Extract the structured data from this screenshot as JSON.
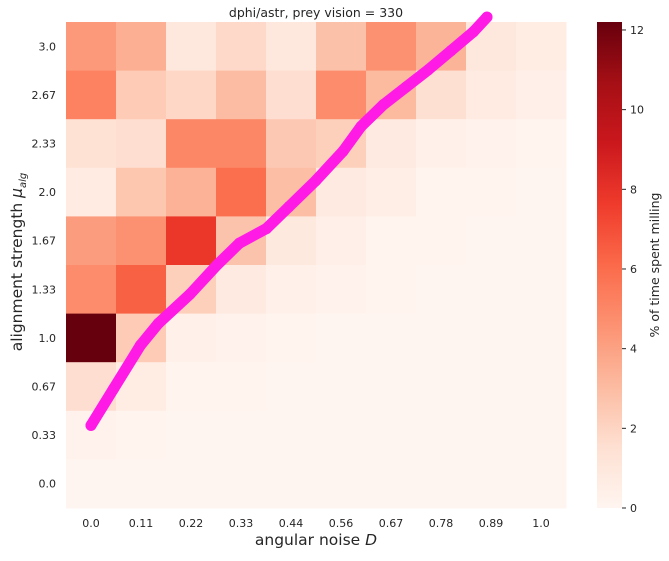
{
  "chart_data": {
    "type": "heatmap",
    "title": "dphi/astr, prey vision = 330",
    "xlabel": "angular noise",
    "xlabel_symbol": "D",
    "ylabel": "alignment strength",
    "ylabel_symbol": "μ",
    "ylabel_subscript": "alg",
    "x_categories": [
      "0.0",
      "0.11",
      "0.22",
      "0.33",
      "0.44",
      "0.56",
      "0.67",
      "0.78",
      "0.89",
      "1.0"
    ],
    "y_categories": [
      "3.0",
      "2.67",
      "2.33",
      "2.0",
      "1.67",
      "1.33",
      "1.0",
      "0.67",
      "0.33",
      "0.0"
    ],
    "values": [
      [
        4.3,
        3.5,
        1.0,
        1.8,
        1.0,
        2.8,
        4.6,
        3.3,
        1.0,
        0.6
      ],
      [
        5.2,
        2.4,
        1.9,
        3.0,
        1.6,
        4.8,
        3.1,
        1.5,
        0.7,
        0.4
      ],
      [
        1.4,
        1.6,
        5.0,
        5.0,
        2.5,
        2.2,
        0.8,
        0.3,
        0.2,
        0.1
      ],
      [
        0.7,
        2.6,
        3.4,
        5.9,
        2.9,
        0.8,
        0.5,
        0.1,
        0.1,
        0.0
      ],
      [
        4.2,
        4.6,
        7.8,
        2.7,
        0.9,
        0.4,
        0.1,
        0.1,
        0.0,
        0.0
      ],
      [
        4.8,
        6.4,
        2.2,
        0.8,
        0.3,
        0.2,
        0.1,
        0.0,
        0.0,
        0.0
      ],
      [
        12.2,
        2.4,
        0.3,
        0.2,
        0.1,
        0.0,
        0.0,
        0.0,
        0.0,
        0.0
      ],
      [
        1.6,
        0.6,
        0.1,
        0.1,
        0.0,
        0.0,
        0.0,
        0.0,
        0.0,
        0.0
      ],
      [
        0.2,
        0.1,
        0.0,
        0.0,
        0.0,
        0.0,
        0.0,
        0.0,
        0.0,
        0.0
      ],
      [
        0.0,
        0.0,
        0.0,
        0.0,
        0.0,
        0.0,
        0.0,
        0.0,
        0.0,
        0.0
      ]
    ],
    "colorbar": {
      "label": "% of time spent milling",
      "min": 0,
      "max": 12.2,
      "ticks": [
        0,
        2,
        4,
        6,
        8,
        10,
        12
      ],
      "colormap": "Reds",
      "colors": [
        "#fff5f0",
        "#fee0d2",
        "#fcbba1",
        "#fc9272",
        "#fb6a4a",
        "#ef3b2c",
        "#cb181d",
        "#a50f15",
        "#67000d"
      ]
    },
    "overlay_curve": {
      "color": "#ff1ae6",
      "points": [
        {
          "x": 0.0,
          "y": 0.4
        },
        {
          "x": 0.05,
          "y": 0.65
        },
        {
          "x": 0.11,
          "y": 0.95
        },
        {
          "x": 0.15,
          "y": 1.1
        },
        {
          "x": 0.22,
          "y": 1.3
        },
        {
          "x": 0.28,
          "y": 1.5
        },
        {
          "x": 0.33,
          "y": 1.65
        },
        {
          "x": 0.39,
          "y": 1.75
        },
        {
          "x": 0.44,
          "y": 1.9
        },
        {
          "x": 0.5,
          "y": 2.08
        },
        {
          "x": 0.56,
          "y": 2.28
        },
        {
          "x": 0.6,
          "y": 2.45
        },
        {
          "x": 0.65,
          "y": 2.6
        },
        {
          "x": 0.7,
          "y": 2.72
        },
        {
          "x": 0.75,
          "y": 2.84
        },
        {
          "x": 0.8,
          "y": 2.97
        },
        {
          "x": 0.85,
          "y": 3.1
        },
        {
          "x": 0.88,
          "y": 3.2
        }
      ]
    },
    "grid": false,
    "legend": "none"
  }
}
